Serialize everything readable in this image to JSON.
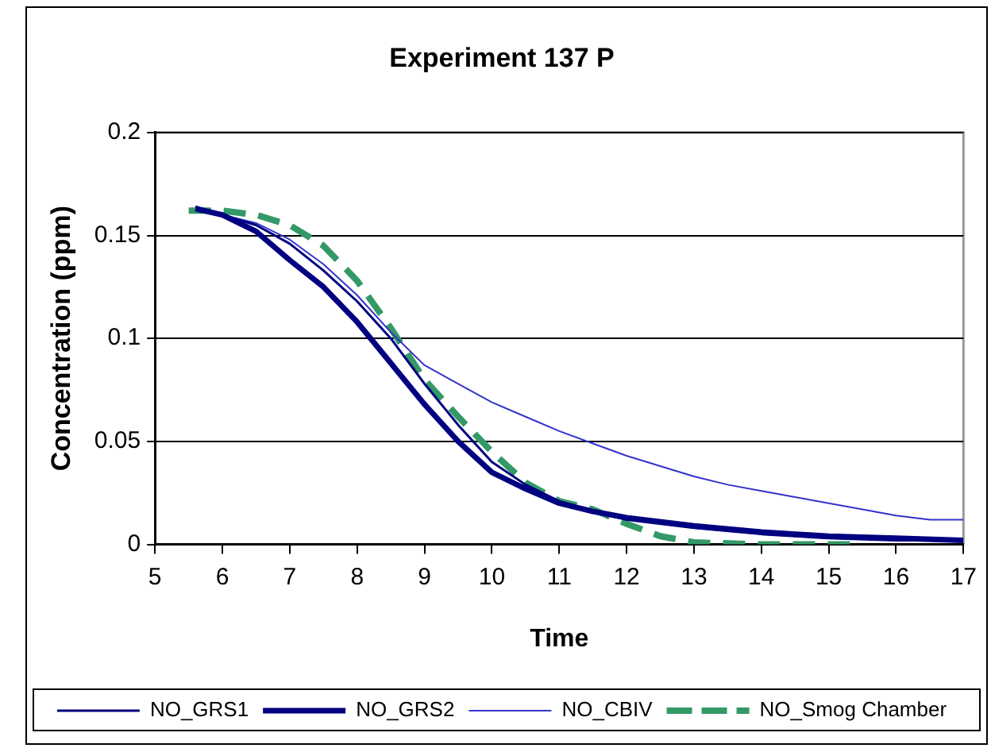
{
  "chart_data": {
    "type": "line",
    "title": "Experiment 137 P",
    "xlabel": "Time",
    "ylabel": "Concentration (ppm)",
    "xlim": [
      5,
      17
    ],
    "xticks": [
      5,
      6,
      7,
      8,
      9,
      10,
      11,
      12,
      13,
      14,
      15,
      16,
      17
    ],
    "ylim": [
      0,
      0.2
    ],
    "yticks": [
      0,
      0.05,
      0.1,
      0.15,
      0.2
    ],
    "grid": "y",
    "legend": "bottom",
    "marker": "none",
    "series": [
      {
        "name": "NO_GRS1",
        "color": "#000080",
        "line_style": "solid",
        "x": [
          5.6,
          6,
          6.5,
          7,
          7.5,
          8,
          8.5,
          9,
          9.5,
          10,
          10.5,
          11,
          11.5,
          12,
          13,
          14,
          15,
          16,
          17
        ],
        "values": [
          0.164,
          0.16,
          0.155,
          0.146,
          0.133,
          0.118,
          0.1,
          0.078,
          0.058,
          0.04,
          0.029,
          0.021,
          0.016,
          0.012,
          0.008,
          0.005,
          0.003,
          0.002,
          0.002
        ]
      },
      {
        "name": "NO_GRS2",
        "color": "#000080",
        "line_style": "solid",
        "x": [
          5.6,
          6,
          6.5,
          7,
          7.5,
          8,
          8.5,
          9,
          9.5,
          10,
          10.5,
          11,
          11.5,
          12,
          13,
          14,
          15,
          16,
          17
        ],
        "values": [
          0.163,
          0.16,
          0.152,
          0.138,
          0.125,
          0.108,
          0.088,
          0.068,
          0.05,
          0.035,
          0.027,
          0.02,
          0.016,
          0.013,
          0.009,
          0.006,
          0.004,
          0.003,
          0.002
        ]
      },
      {
        "name": "NO_CBIV",
        "color": "#3333cc",
        "line_style": "solid",
        "x": [
          5.6,
          6,
          6.5,
          7,
          7.5,
          8,
          8.5,
          9,
          9.5,
          10,
          10.5,
          11,
          11.5,
          12,
          12.5,
          13,
          13.5,
          14,
          14.5,
          15,
          15.5,
          16,
          16.5,
          17
        ],
        "values": [
          0.164,
          0.16,
          0.156,
          0.148,
          0.136,
          0.121,
          0.103,
          0.087,
          0.078,
          0.069,
          0.062,
          0.055,
          0.049,
          0.043,
          0.038,
          0.033,
          0.029,
          0.026,
          0.023,
          0.02,
          0.017,
          0.014,
          0.012,
          0.012
        ]
      },
      {
        "name": "NO_Smog Chamber",
        "color": "#339966",
        "line_style": "dashed",
        "x": [
          5.5,
          6,
          6.5,
          7,
          7.5,
          8,
          8.5,
          9,
          9.5,
          10,
          10.5,
          11,
          11.5,
          12,
          12.5,
          13,
          14,
          15,
          15.5
        ],
        "values": [
          0.162,
          0.162,
          0.16,
          0.155,
          0.145,
          0.128,
          0.105,
          0.08,
          0.062,
          0.045,
          0.03,
          0.021,
          0.017,
          0.01,
          0.004,
          0.001,
          0,
          0,
          0
        ]
      }
    ]
  }
}
